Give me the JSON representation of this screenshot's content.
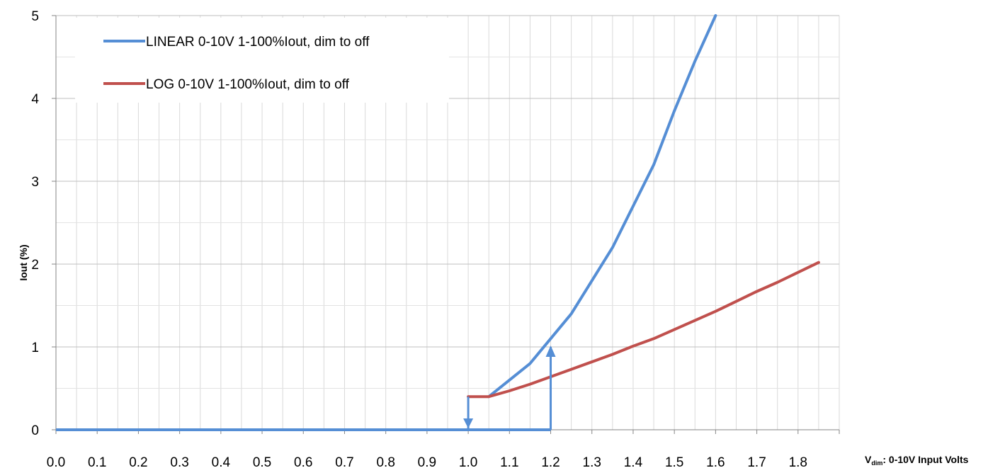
{
  "chart_data": {
    "type": "line",
    "title": "",
    "ylabel": "Iout (%)",
    "xlabel": {
      "prefix": "V",
      "subscript": "dim",
      "suffix": ": 0-10V Input Volts"
    },
    "xlim": [
      0.0,
      1.9
    ],
    "ylim": [
      0,
      5
    ],
    "x_ticks": [
      "0.0",
      "0.1",
      "0.2",
      "0.3",
      "0.4",
      "0.5",
      "0.6",
      "0.7",
      "0.8",
      "0.9",
      "1.0",
      "1.1",
      "1.2",
      "1.3",
      "1.4",
      "1.5",
      "1.6",
      "1.7",
      "1.8"
    ],
    "y_ticks": [
      "0",
      "1",
      "2",
      "3",
      "4",
      "5"
    ],
    "grid": true,
    "legend_position": "top-left",
    "series": [
      {
        "name": "LINEAR 0-10V 1-100%Iout, dim to off",
        "color": "#558ED5",
        "points": [
          [
            1.05,
            0.4
          ],
          [
            1.15,
            0.8
          ],
          [
            1.2,
            1.1
          ],
          [
            1.25,
            1.4
          ],
          [
            1.3,
            1.8
          ],
          [
            1.35,
            2.2
          ],
          [
            1.4,
            2.7
          ],
          [
            1.45,
            3.2
          ],
          [
            1.5,
            3.85
          ],
          [
            1.55,
            4.45
          ],
          [
            1.6,
            5.0
          ]
        ]
      },
      {
        "name": "LOG 0-10V 1-100%Iout, dim to off",
        "color": "#C0504D",
        "points": [
          [
            1.0,
            0.4
          ],
          [
            1.05,
            0.4
          ],
          [
            1.1,
            0.47
          ],
          [
            1.15,
            0.55
          ],
          [
            1.2,
            0.64
          ],
          [
            1.25,
            0.73
          ],
          [
            1.3,
            0.82
          ],
          [
            1.35,
            0.91
          ],
          [
            1.4,
            1.01
          ],
          [
            1.45,
            1.1
          ],
          [
            1.5,
            1.21
          ],
          [
            1.55,
            1.32
          ],
          [
            1.6,
            1.43
          ],
          [
            1.65,
            1.55
          ],
          [
            1.7,
            1.67
          ],
          [
            1.75,
            1.78
          ],
          [
            1.8,
            1.9
          ],
          [
            1.85,
            2.02
          ]
        ]
      }
    ],
    "hysteresis": {
      "color": "#558ED5",
      "baseline": [
        [
          0.0,
          0
        ],
        [
          1.2,
          0
        ]
      ],
      "turn_on": [
        [
          1.2,
          0
        ],
        [
          1.2,
          1.0
        ]
      ],
      "turn_off": [
        [
          1.0,
          0.4
        ],
        [
          1.0,
          0
        ]
      ]
    }
  }
}
